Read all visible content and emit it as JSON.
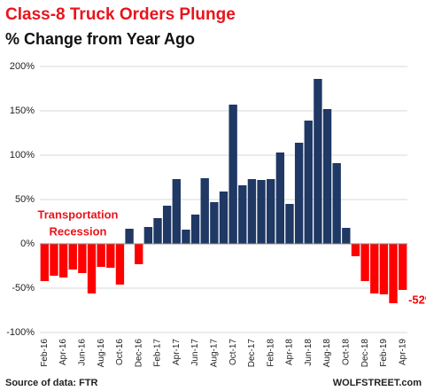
{
  "chart_data": {
    "type": "bar",
    "title": "Class-8 Truck Orders Plunge",
    "subtitle": "% Change from Year Ago",
    "annotation": [
      "Transportation",
      "Recession"
    ],
    "source": "Source of data: FTR",
    "credit": "WOLFSTREET.com",
    "categories": [
      "Feb-16",
      null,
      "Apr-16",
      null,
      "Jun-16",
      null,
      "Aug-16",
      null,
      "Oct-16",
      null,
      "Dec-16",
      null,
      "Feb-17",
      null,
      "Apr-17",
      null,
      "Jun-17",
      null,
      "Aug-17",
      null,
      "Oct-17",
      null,
      "Dec-17",
      null,
      "Feb-18",
      null,
      "Apr-18",
      null,
      "Jun-18",
      null,
      "Aug-18",
      null,
      "Oct-18",
      null,
      "Dec-18",
      null,
      "Feb-19",
      null,
      "Apr-19"
    ],
    "values": [
      -42,
      -36,
      -38,
      -29,
      -33,
      -56,
      -26,
      -27,
      -46,
      17,
      -23,
      19,
      29,
      43,
      73,
      16,
      33,
      74,
      47,
      59,
      157,
      66,
      73,
      72,
      73,
      103,
      45,
      114,
      139,
      186,
      152,
      91,
      18,
      -14,
      -42,
      -56,
      -57,
      -67,
      -52
    ],
    "value_labels": [
      null,
      null,
      null,
      null,
      null,
      null,
      null,
      null,
      null,
      null,
      null,
      null,
      null,
      null,
      null,
      null,
      null,
      null,
      null,
      null,
      null,
      null,
      null,
      null,
      null,
      null,
      null,
      null,
      null,
      null,
      null,
      null,
      null,
      null,
      null,
      null,
      null,
      null,
      "-52%"
    ],
    "color": "#1f3864",
    "negative_color": "#ff0000",
    "ylim": [
      -100,
      200
    ],
    "yticks": [
      {
        "value": -100,
        "label": "-100%"
      },
      {
        "value": -50,
        "label": "-50%"
      },
      {
        "value": 0,
        "label": "0%"
      },
      {
        "value": 50,
        "label": "50%"
      },
      {
        "value": 100,
        "label": "100%"
      },
      {
        "value": 150,
        "label": "150%"
      },
      {
        "value": 200,
        "label": "200%"
      }
    ],
    "grid": true
  }
}
